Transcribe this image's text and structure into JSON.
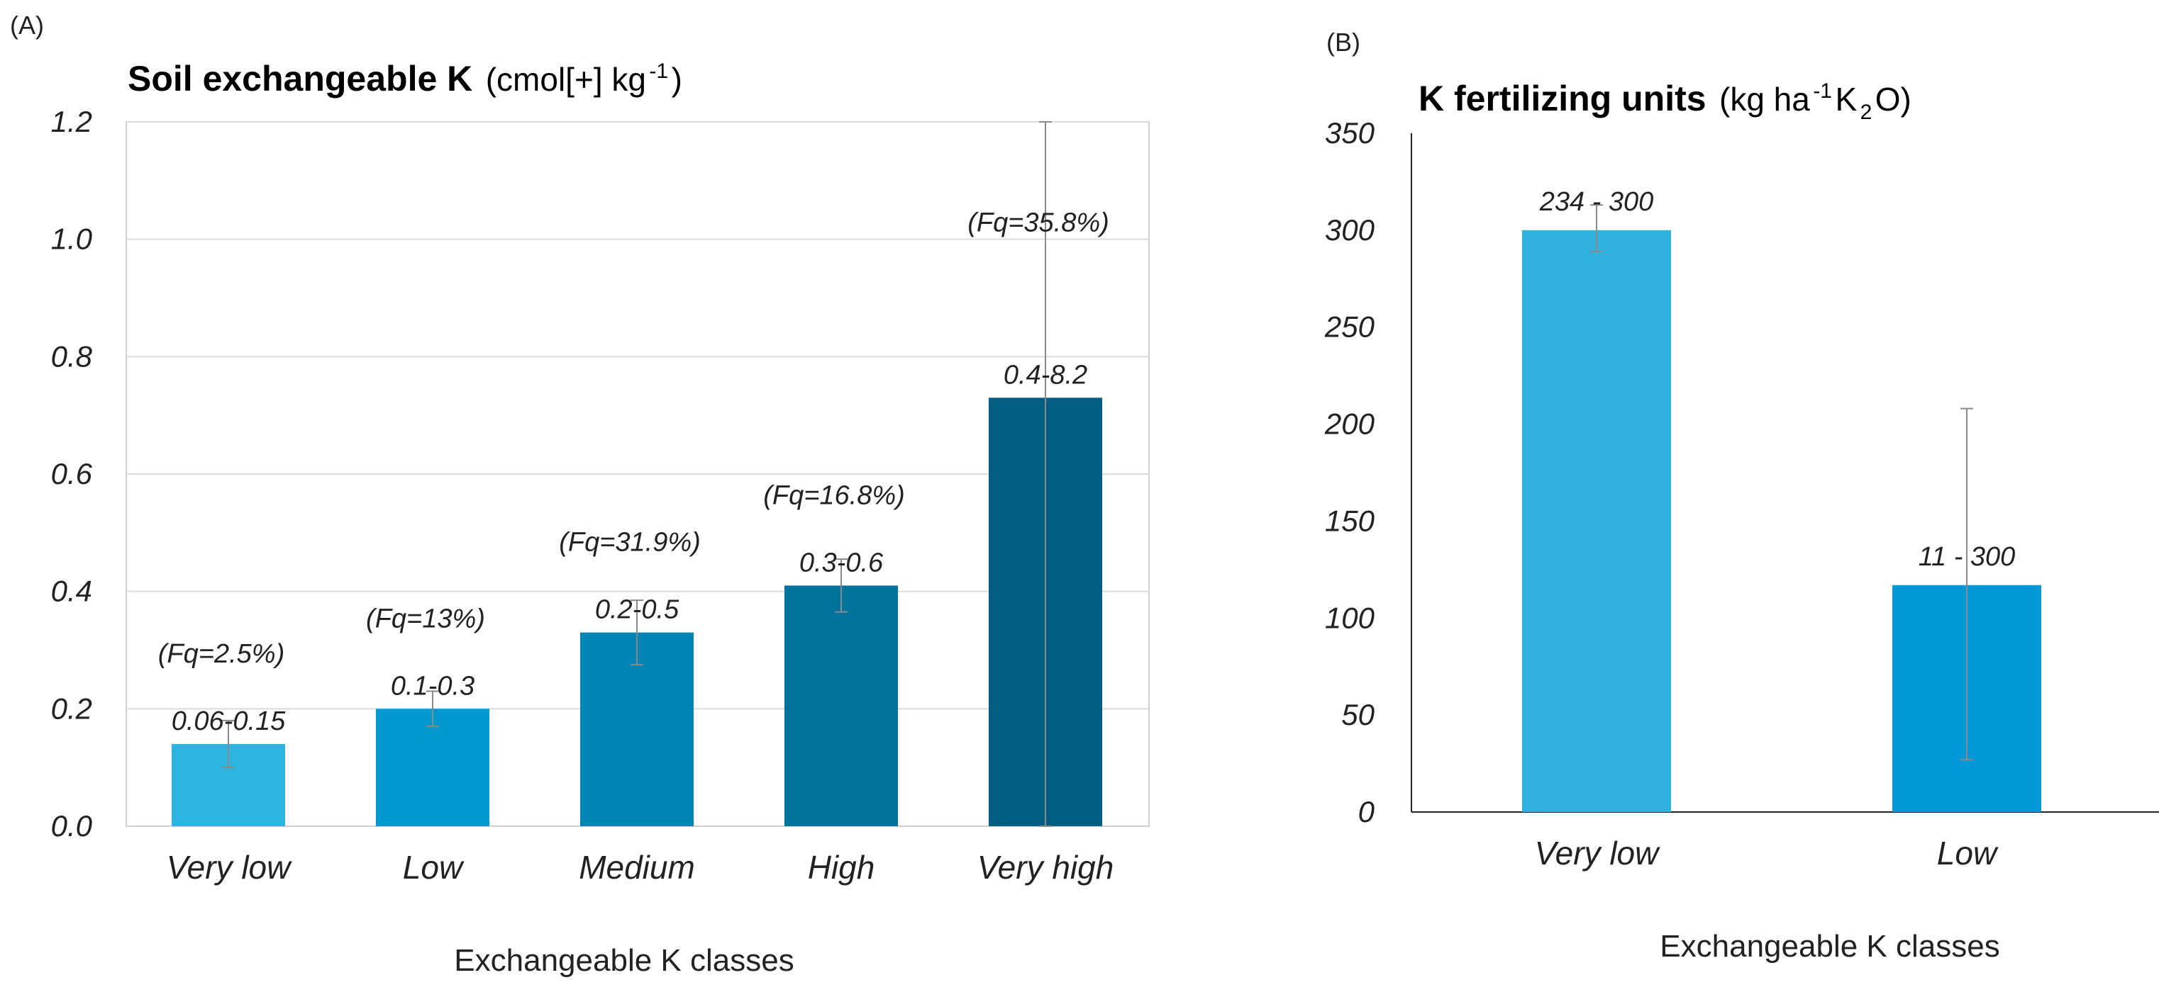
{
  "chart_data": [
    {
      "panel": "(A)",
      "type": "bar",
      "title": "Soil exchangeable K",
      "title_unit": "(cmol[+] kg",
      "title_unit_sup": "-1",
      "title_unit_end": ")",
      "xlabel": "Exchangeable K classes",
      "ylabel": "",
      "ylim": [
        0,
        1.2
      ],
      "yticks": [
        "0.0",
        "0.2",
        "0.4",
        "0.6",
        "0.8",
        "1.0",
        "1.2"
      ],
      "categories": [
        "Very low",
        "Low",
        "Medium",
        "High",
        "Very high"
      ],
      "values": [
        0.14,
        0.2,
        0.33,
        0.41,
        0.73
      ],
      "error_low": [
        0.1,
        0.17,
        0.275,
        0.365,
        0.0
      ],
      "error_high": [
        0.18,
        0.23,
        0.385,
        0.455,
        1.2
      ],
      "range_labels": [
        "0.06-0.15",
        "0.1-0.3",
        "0.2-0.5",
        "0.3-0.6",
        "0.4-8.2"
      ],
      "freq_labels": [
        "(Fq=2.5%)",
        "(Fq=13%)",
        "(Fq=31.9%)",
        "(Fq=16.8%)",
        "(Fq=35.8%)"
      ],
      "colors": [
        "#2cb5e0",
        "#0098d0",
        "#0085b5",
        "#00739c",
        "#005d83"
      ],
      "grid": true
    },
    {
      "panel": "(B)",
      "type": "bar",
      "title": "K fertilizing units",
      "title_unit": "(kg ha",
      "title_unit_sup": "-1",
      "title_unit_mid": " K",
      "title_unit_sub": "2",
      "title_unit_end": "O)",
      "xlabel": "Exchangeable K classes",
      "ylabel": "",
      "ylim": [
        0,
        350
      ],
      "yticks": [
        "0",
        "50",
        "100",
        "150",
        "200",
        "250",
        "300",
        "350"
      ],
      "categories": [
        "Very low",
        "Low"
      ],
      "values": [
        300,
        117
      ],
      "error_low": [
        289,
        27
      ],
      "error_high": [
        313,
        208
      ],
      "range_labels": [
        "234 - 300",
        "11 - 300"
      ],
      "colors": [
        "#2fb3de",
        "#0098d6"
      ],
      "grid": false
    }
  ]
}
